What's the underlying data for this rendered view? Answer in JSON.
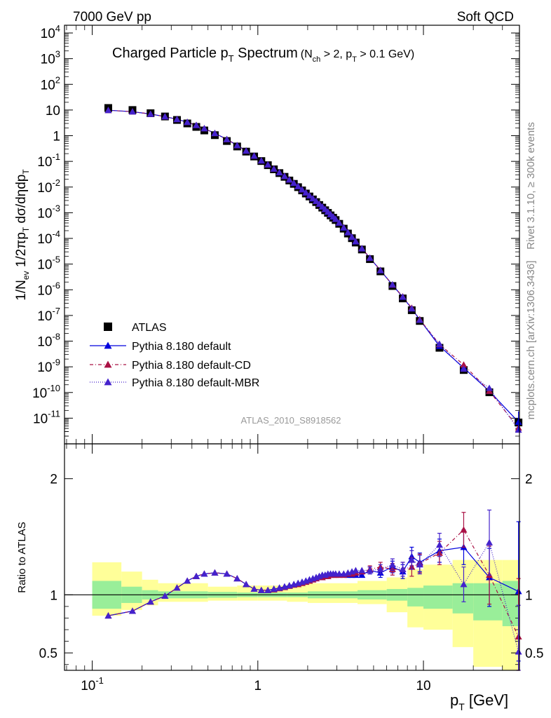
{
  "header": {
    "left": "7000 GeV pp",
    "right": "Soft QCD"
  },
  "side_labels": {
    "rivet": "Rivet 3.1.10, ≥ 300k events",
    "mcplots": "mcplots.cern.ch [arXiv:1306.3436]"
  },
  "chart_data": [
    {
      "type": "scatter",
      "title_main": "Charged Particle p",
      "title_main_sub": "T",
      "title_main_tail": " Spectrum",
      "title_cut": "(N",
      "title_cut_sub1": "ch",
      "title_cut_mid": " > 2, p",
      "title_cut_sub2": "T",
      "title_cut_tail": " > 0.1 GeV)",
      "ylabel": "1/N_ev 1/2πp_T dσ/dηdp_T",
      "log_x": true,
      "log_y": true,
      "xlim": [
        0.068,
        38
      ],
      "ylim": [
        1e-12,
        20000
      ],
      "y_ticks": [
        "10^4",
        "10^3",
        "10^2",
        "10",
        "1",
        "10^-1",
        "10^-2",
        "10^-3",
        "10^-4",
        "10^-5",
        "10^-6",
        "10^-7",
        "10^-8",
        "10^-9",
        "10^-10",
        "10^-11"
      ],
      "analysis_label": "ATLAS_2010_S8918562",
      "legend_position": "lower-left",
      "x": [
        0.125,
        0.175,
        0.225,
        0.275,
        0.325,
        0.375,
        0.425,
        0.475,
        0.55,
        0.65,
        0.75,
        0.85,
        0.95,
        1.05,
        1.15,
        1.25,
        1.35,
        1.45,
        1.55,
        1.65,
        1.75,
        1.85,
        1.95,
        2.05,
        2.15,
        2.25,
        2.35,
        2.45,
        2.55,
        2.65,
        2.75,
        2.85,
        2.95,
        3.1,
        3.3,
        3.5,
        3.7,
        3.9,
        4.25,
        4.75,
        5.5,
        6.5,
        7.5,
        8.5,
        9.5,
        12.5,
        17.5,
        25.0,
        37.5
      ],
      "series": [
        {
          "name": "ATLAS",
          "color": "#000000",
          "marker": "square",
          "values": [
            12,
            10,
            7.5,
            5.6,
            4.1,
            3.0,
            2.2,
            1.6,
            1.05,
            0.62,
            0.38,
            0.24,
            0.155,
            0.103,
            0.071,
            0.049,
            0.035,
            0.025,
            0.018,
            0.0133,
            0.0099,
            0.0074,
            0.0056,
            0.0043,
            0.0033,
            0.0026,
            0.002,
            0.00158,
            0.00125,
            0.00099,
            0.00079,
            0.00064,
            0.00052,
            0.00037,
            0.00024,
            0.000155,
            0.000102,
            6.9e-05,
            3.7e-05,
            1.56e-05,
            5.2e-06,
            1.4e-06,
            4.6e-07,
            1.6e-07,
            6.1e-08,
            5.5e-09,
            7.5e-10,
            1.02e-10,
            6.8e-12
          ]
        },
        {
          "name": "Pythia 8.180 default",
          "color": "#0000dd",
          "marker": "triangle",
          "dash": "",
          "values": [
            9.8,
            8.6,
            7.0,
            5.55,
            4.35,
            3.35,
            2.55,
            1.9,
            1.24,
            0.72,
            0.42,
            0.258,
            0.163,
            0.107,
            0.074,
            0.051,
            0.0367,
            0.0264,
            0.0191,
            0.0142,
            0.0106,
            0.0079,
            0.006,
            0.0046,
            0.00355,
            0.0028,
            0.00216,
            0.0017,
            0.00135,
            0.00107,
            0.00085,
            0.00069,
            0.00056,
            0.0004,
            0.00026,
            0.000168,
            0.000111,
            7.5e-05,
            4e-05,
            1.71e-05,
            5.7e-06,
            1.54e-06,
            5.2e-07,
            1.85e-07,
            6.8e-08,
            6.4e-09,
            9.2e-10,
            1.13e-10,
            7.1e-12
          ]
        },
        {
          "name": "Pythia 8.180 default-CD",
          "color": "#aa1144",
          "marker": "triangle",
          "dash": "5,3,1,3",
          "values": [
            9.8,
            8.6,
            7.0,
            5.55,
            4.35,
            3.35,
            2.55,
            1.9,
            1.24,
            0.72,
            0.42,
            0.258,
            0.163,
            0.107,
            0.074,
            0.0512,
            0.0369,
            0.0266,
            0.0193,
            0.0144,
            0.0107,
            0.008,
            0.0061,
            0.0047,
            0.0036,
            0.00284,
            0.00219,
            0.00173,
            0.00137,
            0.00109,
            0.00087,
            0.0007,
            0.00057,
            0.00041,
            0.000265,
            0.000172,
            0.000114,
            7.7e-05,
            4.1e-05,
            1.74e-05,
            5.8e-06,
            1.56e-06,
            5.4e-07,
            1.95e-07,
            7e-08,
            7.5e-09,
            1.2e-09,
            1.13e-10,
            4.2e-12
          ]
        },
        {
          "name": "Pythia 8.180 default-MBR",
          "color": "#4422cc",
          "marker": "triangle",
          "dash": "1,2",
          "values": [
            9.8,
            8.6,
            7.0,
            5.55,
            4.35,
            3.35,
            2.55,
            1.9,
            1.24,
            0.72,
            0.42,
            0.258,
            0.163,
            0.107,
            0.074,
            0.0512,
            0.0369,
            0.0266,
            0.0193,
            0.0144,
            0.0107,
            0.008,
            0.0061,
            0.0047,
            0.0036,
            0.00284,
            0.00219,
            0.00173,
            0.00137,
            0.00109,
            0.00087,
            0.0007,
            0.00057,
            0.00041,
            0.000265,
            0.000172,
            0.000114,
            7.7e-05,
            4.1e-05,
            1.74e-05,
            5.7e-06,
            1.6e-06,
            5.3e-07,
            1.85e-07,
            6.6e-08,
            7.8e-09,
            8.2e-10,
            1.48e-10,
            3.5e-12
          ]
        }
      ]
    },
    {
      "type": "scatter",
      "ylabel": "Ratio to ATLAS",
      "xlabel": "p_T [GeV]",
      "xlim": [
        0.068,
        38
      ],
      "ylim": [
        0.35,
        2.3
      ],
      "y_ticks": [
        "0.5",
        "1",
        "2"
      ],
      "x_ticks": [
        "10^-1",
        "1",
        "10"
      ],
      "reference_line": 1,
      "bands": {
        "edges": [
          0.1,
          0.15,
          0.2,
          0.25,
          0.5,
          0.75,
          1.0,
          1.5,
          2.0,
          4.0,
          6.0,
          8.0,
          10.0,
          15.0,
          20.0,
          30.0,
          38.0
        ],
        "inner_up": [
          1.12,
          1.07,
          1.04,
          1.03,
          1.025,
          1.02,
          1.02,
          1.02,
          1.03,
          1.04,
          1.05,
          1.06,
          1.08,
          1.1,
          1.1,
          1.12
        ],
        "inner_lo": [
          0.88,
          0.93,
          0.96,
          0.97,
          0.975,
          0.98,
          0.98,
          0.98,
          0.97,
          0.96,
          0.95,
          0.9,
          0.88,
          0.84,
          0.78,
          0.73
        ],
        "outer_up": [
          1.28,
          1.2,
          1.13,
          1.1,
          1.07,
          1.08,
          1.08,
          1.09,
          1.1,
          1.12,
          1.15,
          1.22,
          1.26,
          1.3,
          1.3,
          1.3
        ],
        "outer_lo": [
          0.82,
          0.87,
          0.91,
          0.94,
          0.95,
          0.95,
          0.95,
          0.94,
          0.93,
          0.92,
          0.85,
          0.72,
          0.7,
          0.55,
          0.38,
          0.35
        ],
        "inner_color": "#99ee99",
        "outer_color": "#ffff99"
      },
      "x": [
        0.125,
        0.175,
        0.225,
        0.275,
        0.325,
        0.375,
        0.425,
        0.475,
        0.55,
        0.65,
        0.75,
        0.85,
        0.95,
        1.05,
        1.15,
        1.25,
        1.35,
        1.45,
        1.55,
        1.65,
        1.75,
        1.85,
        1.95,
        2.05,
        2.15,
        2.25,
        2.35,
        2.45,
        2.55,
        2.65,
        2.75,
        2.85,
        2.95,
        3.1,
        3.3,
        3.5,
        3.7,
        3.9,
        4.25,
        4.75,
        5.5,
        6.5,
        7.5,
        8.5,
        9.5,
        12.5,
        17.5,
        25.0,
        37.5
      ],
      "series": [
        {
          "name": "Pythia 8.180 default",
          "color": "#0000dd",
          "dash": "",
          "values": [
            0.82,
            0.86,
            0.94,
            0.99,
            1.06,
            1.12,
            1.16,
            1.18,
            1.19,
            1.18,
            1.14,
            1.09,
            1.05,
            1.04,
            1.04,
            1.05,
            1.06,
            1.07,
            1.08,
            1.09,
            1.1,
            1.11,
            1.12,
            1.13,
            1.14,
            1.15,
            1.16,
            1.17,
            1.17,
            1.18,
            1.18,
            1.18,
            1.18,
            1.18,
            1.18,
            1.17,
            1.17,
            1.17,
            1.17,
            1.21,
            1.19,
            1.24,
            1.2,
            1.33,
            1.28,
            1.38,
            1.41,
            1.15,
            1.03
          ],
          "err": [
            0.02,
            0.02,
            0.02,
            0.02,
            0.02,
            0.02,
            0.02,
            0.02,
            0.02,
            0.02,
            0.02,
            0.02,
            0.02,
            0.02,
            0.02,
            0.02,
            0.02,
            0.02,
            0.02,
            0.02,
            0.02,
            0.02,
            0.02,
            0.02,
            0.02,
            0.02,
            0.02,
            0.02,
            0.02,
            0.02,
            0.02,
            0.02,
            0.02,
            0.02,
            0.02,
            0.02,
            0.02,
            0.02,
            0.02,
            0.03,
            0.04,
            0.05,
            0.06,
            0.08,
            0.08,
            0.1,
            0.15,
            0.25,
            0.6
          ]
        },
        {
          "name": "Pythia 8.180 default-CD",
          "color": "#aa1144",
          "dash": "5,3,1,3",
          "values": [
            0.82,
            0.86,
            0.94,
            0.99,
            1.06,
            1.12,
            1.16,
            1.18,
            1.19,
            1.18,
            1.14,
            1.09,
            1.05,
            1.04,
            1.04,
            1.045,
            1.055,
            1.065,
            1.075,
            1.085,
            1.09,
            1.1,
            1.11,
            1.12,
            1.13,
            1.14,
            1.15,
            1.15,
            1.16,
            1.16,
            1.17,
            1.17,
            1.17,
            1.17,
            1.17,
            1.18,
            1.18,
            1.19,
            1.2,
            1.22,
            1.24,
            1.22,
            1.22,
            1.24,
            1.27,
            1.36,
            1.56,
            1.17,
            0.64
          ],
          "err": [
            0.02,
            0.02,
            0.02,
            0.02,
            0.02,
            0.02,
            0.02,
            0.02,
            0.02,
            0.02,
            0.02,
            0.02,
            0.02,
            0.02,
            0.02,
            0.02,
            0.02,
            0.02,
            0.02,
            0.02,
            0.02,
            0.02,
            0.02,
            0.02,
            0.02,
            0.02,
            0.02,
            0.02,
            0.02,
            0.02,
            0.02,
            0.02,
            0.02,
            0.02,
            0.02,
            0.02,
            0.02,
            0.02,
            0.02,
            0.03,
            0.04,
            0.05,
            0.06,
            0.08,
            0.08,
            0.1,
            0.15,
            0.25,
            0.5
          ]
        },
        {
          "name": "Pythia 8.180 default-MBR",
          "color": "#4422cc",
          "dash": "1,2",
          "values": [
            0.82,
            0.86,
            0.94,
            0.99,
            1.06,
            1.12,
            1.16,
            1.18,
            1.19,
            1.18,
            1.14,
            1.09,
            1.05,
            1.04,
            1.04,
            1.05,
            1.06,
            1.07,
            1.08,
            1.09,
            1.1,
            1.11,
            1.12,
            1.13,
            1.14,
            1.15,
            1.16,
            1.17,
            1.17,
            1.18,
            1.18,
            1.18,
            1.18,
            1.18,
            1.18,
            1.19,
            1.2,
            1.21,
            1.21,
            1.21,
            1.22,
            1.26,
            1.22,
            1.3,
            1.26,
            1.43,
            1.09,
            1.45,
            0.51
          ],
          "err": [
            0.02,
            0.02,
            0.02,
            0.02,
            0.02,
            0.02,
            0.02,
            0.02,
            0.02,
            0.02,
            0.02,
            0.02,
            0.02,
            0.02,
            0.02,
            0.02,
            0.02,
            0.02,
            0.02,
            0.02,
            0.02,
            0.02,
            0.02,
            0.02,
            0.02,
            0.02,
            0.02,
            0.02,
            0.02,
            0.02,
            0.02,
            0.02,
            0.02,
            0.02,
            0.02,
            0.02,
            0.02,
            0.02,
            0.02,
            0.03,
            0.04,
            0.05,
            0.06,
            0.08,
            0.08,
            0.1,
            0.15,
            0.28,
            0.4
          ]
        }
      ]
    }
  ]
}
